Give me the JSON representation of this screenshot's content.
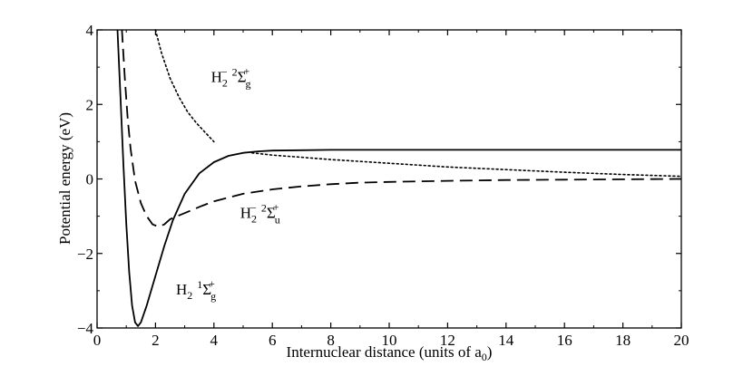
{
  "chart_data": {
    "type": "line",
    "title": "",
    "xlabel": "Internuclear distance (units of a",
    "xlabel_subscript": "0",
    "xlabel_close": ")",
    "ylabel": "Potential energy (eV)",
    "xlim": [
      0,
      20
    ],
    "ylim": [
      -4,
      4
    ],
    "grid": false,
    "legend": "none",
    "xticks": [
      0,
      2,
      4,
      6,
      8,
      10,
      12,
      14,
      16,
      18,
      20
    ],
    "xtick_labels": [
      "0",
      "2",
      "4",
      "6",
      "8",
      "10",
      "12",
      "14",
      "16",
      "18",
      "20"
    ],
    "yticks": [
      -4,
      -2,
      0,
      2,
      4
    ],
    "ytick_labels": [
      "−4",
      "−2",
      "0",
      "2",
      "4"
    ],
    "series": [
      {
        "style": "solid",
        "x": [
          0.7,
          0.8,
          0.9,
          1.0,
          1.1,
          1.2,
          1.3,
          1.4,
          1.5,
          1.7,
          2.0,
          2.3,
          2.6,
          3.0,
          3.5,
          4.0,
          4.5,
          5.0,
          5.5,
          6.0,
          7.0,
          8.0,
          10.0,
          12.0,
          16.0,
          20.0
        ],
        "y": [
          4.0,
          2.2,
          0.4,
          -1.2,
          -2.5,
          -3.4,
          -3.85,
          -3.95,
          -3.85,
          -3.4,
          -2.6,
          -1.8,
          -1.1,
          -0.4,
          0.15,
          0.45,
          0.62,
          0.7,
          0.74,
          0.76,
          0.77,
          0.78,
          0.78,
          0.78,
          0.78,
          0.78
        ]
      },
      {
        "style": "dashed",
        "x": [
          0.85,
          0.95,
          1.05,
          1.15,
          1.3,
          1.5,
          1.7,
          1.9,
          2.1,
          2.3,
          2.5,
          2.8,
          3.2,
          3.6,
          4.0,
          5.0,
          6.0,
          7.0,
          8.0,
          9.0,
          10.0,
          12.0,
          14.0,
          16.0,
          20.0
        ],
        "y": [
          4.0,
          2.7,
          1.6,
          0.8,
          -0.05,
          -0.65,
          -1.0,
          -1.22,
          -1.28,
          -1.22,
          -1.08,
          -0.98,
          -0.85,
          -0.72,
          -0.6,
          -0.4,
          -0.28,
          -0.2,
          -0.14,
          -0.1,
          -0.08,
          -0.05,
          -0.03,
          -0.02,
          0.0
        ]
      },
      {
        "style": "dotted",
        "name": "H2- 2Sigma_g+",
        "x": [
          2.0,
          2.2,
          2.5,
          2.8,
          3.1,
          3.4,
          3.7,
          4.0
        ],
        "y": [
          4.0,
          3.4,
          2.7,
          2.2,
          1.8,
          1.5,
          1.25,
          1.0
        ]
      },
      {
        "style": "dotted",
        "x": [
          5.3,
          6.0,
          7.0,
          8.0,
          10.0,
          12.0,
          14.0,
          16.0,
          18.0,
          20.0
        ],
        "y": [
          0.7,
          0.64,
          0.58,
          0.52,
          0.42,
          0.32,
          0.25,
          0.18,
          0.12,
          0.07
        ]
      }
    ],
    "annotations": [
      {
        "id": "hgminus",
        "base": "H",
        "sub1": "2",
        "sup1": "−",
        "sup2": "2",
        "sigma": "Σ",
        "sub2": "g",
        "sup3": "+",
        "x": 3.9,
        "y": 2.6
      },
      {
        "id": "huminus",
        "base": "H",
        "sub1": "2",
        "sup1": "−",
        "sup2": "2",
        "sigma": "Σ",
        "sub2": "u",
        "sup3": "+",
        "x": 4.9,
        "y": -1.05
      },
      {
        "id": "hg1",
        "base": "H",
        "sub1": "2",
        "sup1": "",
        "sup2": "1",
        "sigma": "Σ",
        "sub2": "g",
        "sup3": "+",
        "x": 2.7,
        "y": -3.1
      }
    ]
  }
}
